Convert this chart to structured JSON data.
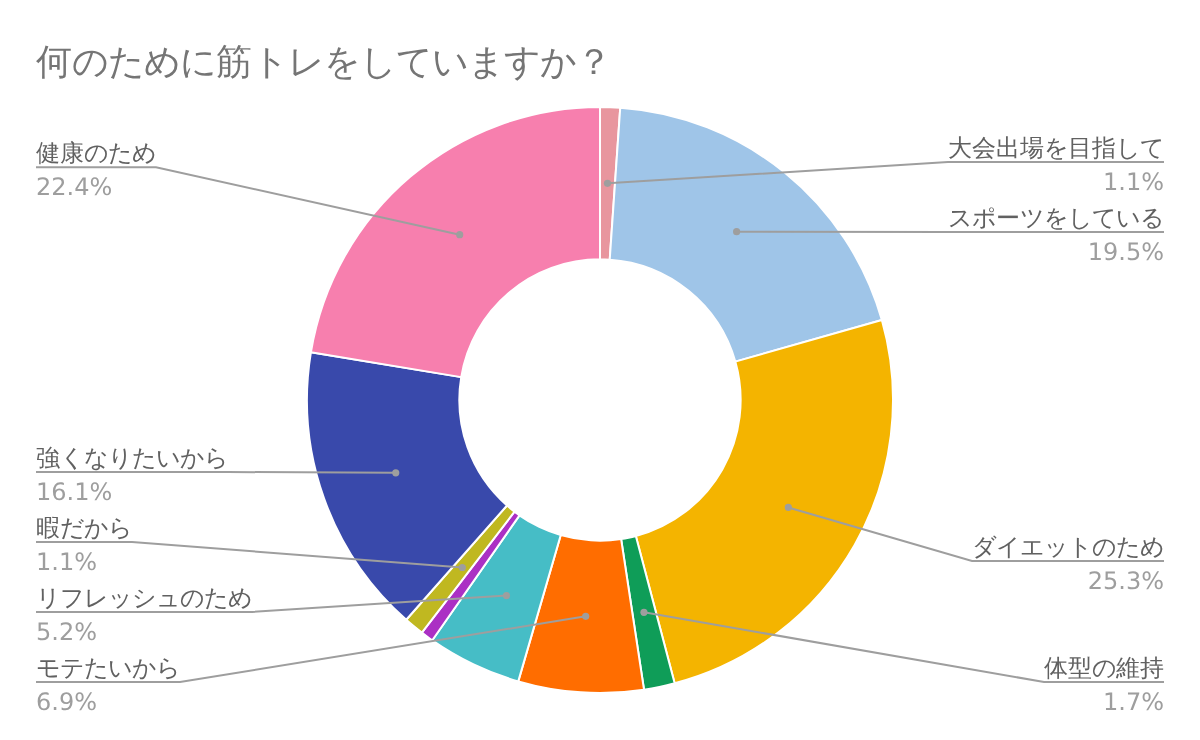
{
  "chart_data": {
    "type": "donut",
    "title": "何のために筋トレをしていますか？",
    "categories": [
      "大会出場を目指して",
      "スポーツをしている",
      "ダイエットのため",
      "体型の維持",
      "モテたいから",
      "リフレッシュのため",
      null,
      "暇だから",
      "強くなりたいから",
      "健康のため"
    ],
    "values": [
      1.1,
      19.5,
      25.3,
      1.7,
      6.9,
      5.2,
      0.7,
      1.1,
      16.1,
      22.4
    ],
    "value_labels": [
      "1.1%",
      "19.5%",
      "25.3%",
      "1.7%",
      "6.9%",
      "5.2%",
      null,
      "1.1%",
      "16.1%",
      "22.4%"
    ],
    "colors": [
      "#e8969e",
      "#9fc5e8",
      "#f4b400",
      "#0f9d58",
      "#ff6d00",
      "#46bdc6",
      "#ab30c4",
      "#c0b820",
      "#3949ab",
      "#f77fae"
    ],
    "legend": false
  }
}
